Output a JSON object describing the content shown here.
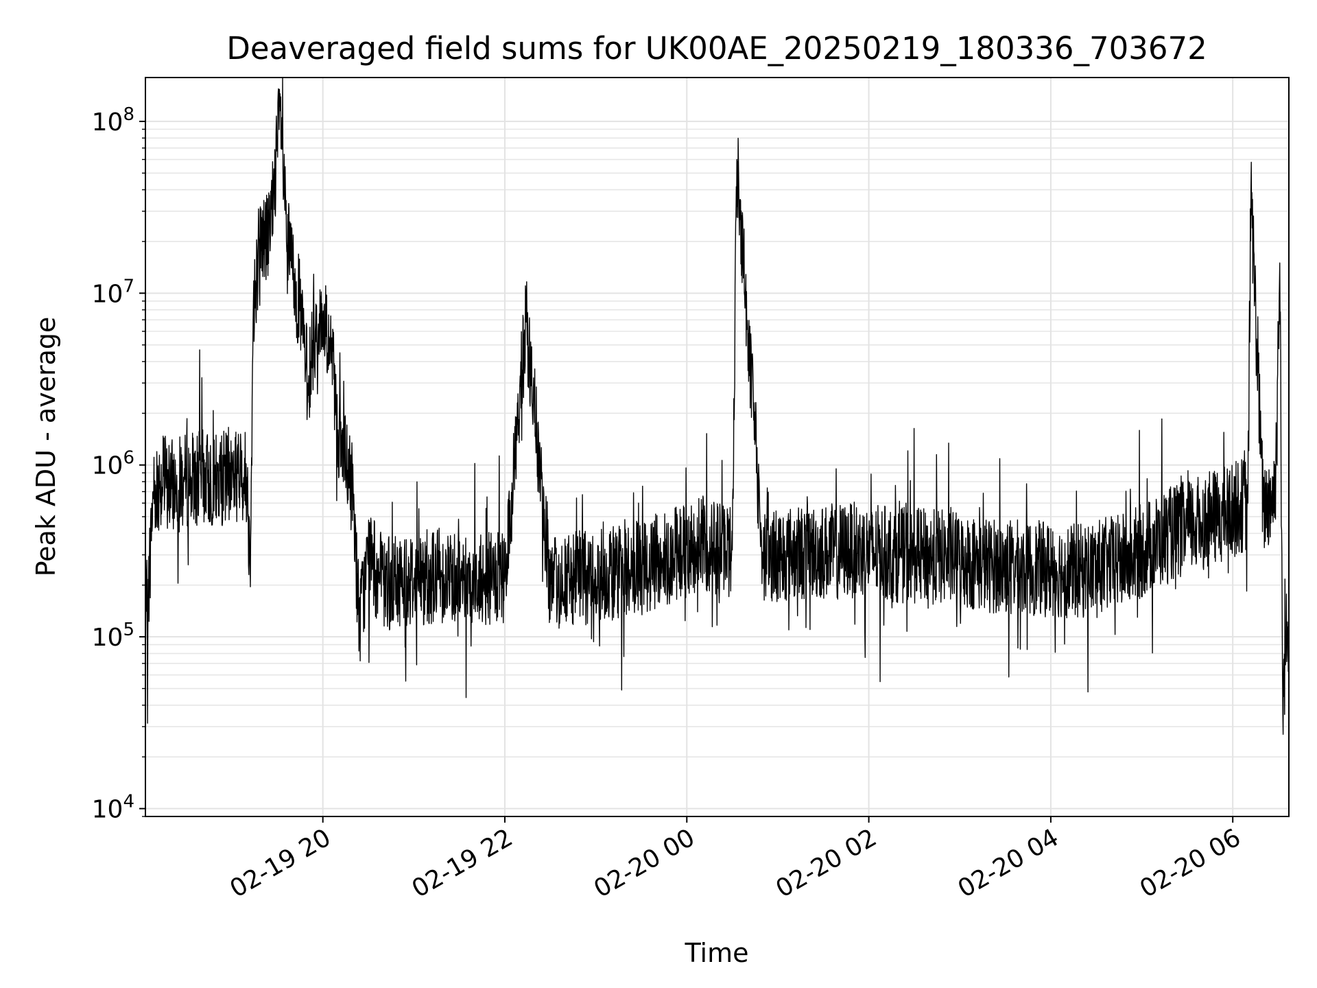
{
  "chart_data": {
    "type": "line",
    "title": "Deaveraged field sums for UK00AE_20250219_180336_703672",
    "xlabel": "Time",
    "ylabel": "Peak ADU - average",
    "x_range": [
      "2025-02-19 18:03",
      "2025-02-20 06:37"
    ],
    "y_range": [
      9000,
      180000000
    ],
    "y_scale": "log",
    "grid": true,
    "line_color": "#000000",
    "x_ticks": [
      {
        "t": "2025-02-19 20:00",
        "label": "02-19 20"
      },
      {
        "t": "2025-02-19 22:00",
        "label": "02-19 22"
      },
      {
        "t": "2025-02-20 00:00",
        "label": "02-20 00"
      },
      {
        "t": "2025-02-20 02:00",
        "label": "02-20 02"
      },
      {
        "t": "2025-02-20 04:00",
        "label": "02-20 04"
      },
      {
        "t": "2025-02-20 06:00",
        "label": "02-20 06"
      }
    ],
    "y_ticks": [
      {
        "value": 10000,
        "base": "10",
        "exp": "4"
      },
      {
        "value": 100000,
        "base": "10",
        "exp": "5"
      },
      {
        "value": 1000000,
        "base": "10",
        "exp": "6"
      },
      {
        "value": 10000000,
        "base": "10",
        "exp": "7"
      },
      {
        "value": 100000000,
        "base": "10",
        "exp": "8"
      }
    ],
    "series": [
      {
        "x": [
          "2025-02-19 18:03",
          "2025-02-19 18:05",
          "2025-02-19 18:08",
          "2025-02-19 18:12",
          "2025-02-19 18:20",
          "2025-02-19 18:30",
          "2025-02-19 18:40",
          "2025-02-19 18:50",
          "2025-02-19 19:00",
          "2025-02-19 19:10",
          "2025-02-19 19:12",
          "2025-02-19 19:14",
          "2025-02-19 19:18",
          "2025-02-19 19:25",
          "2025-02-19 19:32",
          "2025-02-19 19:36",
          "2025-02-19 19:40",
          "2025-02-19 19:45",
          "2025-02-19 19:50",
          "2025-02-19 19:55",
          "2025-02-19 20:00",
          "2025-02-19 20:05",
          "2025-02-19 20:10",
          "2025-02-19 20:15",
          "2025-02-19 20:20",
          "2025-02-19 20:24",
          "2025-02-19 20:30",
          "2025-02-19 20:40",
          "2025-02-19 21:00",
          "2025-02-19 21:20",
          "2025-02-19 21:40",
          "2025-02-19 22:00",
          "2025-02-19 22:14",
          "2025-02-19 22:30",
          "2025-02-19 23:00",
          "2025-02-19 23:30",
          "2025-02-19 23:50",
          "2025-02-20 00:10",
          "2025-02-20 00:30",
          "2025-02-20 00:33",
          "2025-02-20 00:50",
          "2025-02-20 01:20",
          "2025-02-20 01:50",
          "2025-02-20 02:20",
          "2025-02-20 02:50",
          "2025-02-20 03:20",
          "2025-02-20 03:50",
          "2025-02-20 04:20",
          "2025-02-20 04:50",
          "2025-02-20 05:20",
          "2025-02-20 05:50",
          "2025-02-20 06:10",
          "2025-02-20 06:12",
          "2025-02-20 06:20",
          "2025-02-20 06:28",
          "2025-02-20 06:31",
          "2025-02-20 06:33",
          "2025-02-20 06:35",
          "2025-02-20 06:37"
        ],
        "y": [
          120000,
          180000,
          700000,
          800000,
          750000,
          800000,
          850000,
          800000,
          900000,
          850000,
          250000,
          7000000,
          20000000,
          22000000,
          115000000,
          20000000,
          14000000,
          8000000,
          3000000,
          6000000,
          7000000,
          5000000,
          1600000,
          1000000,
          700000,
          120000,
          300000,
          200000,
          220000,
          230000,
          220000,
          210000,
          6800000,
          200000,
          230000,
          250000,
          300000,
          350000,
          320000,
          60000000,
          300000,
          310000,
          320000,
          300000,
          290000,
          260000,
          250000,
          240000,
          280000,
          400000,
          500000,
          600000,
          40000000,
          550000,
          700000,
          15000000,
          35000,
          100000,
          90000
        ]
      }
    ]
  }
}
